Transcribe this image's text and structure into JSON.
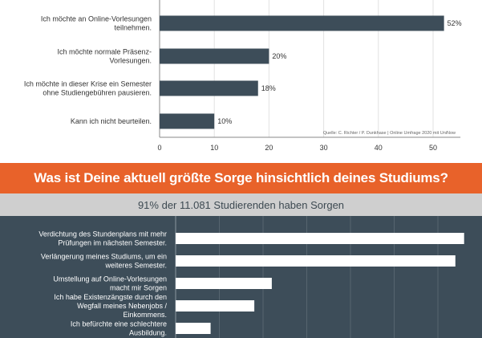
{
  "chart_data": [
    {
      "type": "bar",
      "orientation": "horizontal",
      "categories": [
        [
          "Ich möchte an Online-Vorlesungen",
          "teilnehmen."
        ],
        [
          "Ich möchte normale Präsenz-",
          "Vorlesungen."
        ],
        [
          "Ich möchte in dieser Krise ein Semester",
          "ohne Studiengebühren pausieren."
        ],
        [
          "Kann ich nicht beurteilen."
        ]
      ],
      "values": [
        52,
        20,
        18,
        10
      ],
      "value_labels": [
        "52%",
        "20%",
        "18%",
        "10%"
      ],
      "xlim": [
        0,
        55
      ],
      "ticks": [
        0,
        10,
        20,
        30,
        40,
        50
      ],
      "grid": true,
      "bar_color": "#3d4d59",
      "source": "Quelle: C. Richter / P. Dunkhase | Online Umfrage 2020 mit UniNow"
    },
    {
      "type": "bar",
      "orientation": "horizontal",
      "title": "Was ist Deine aktuell größte Sorge hinsichtlich deines Studiums?",
      "subtitle": "91% der 11.081 Studierenden haben Sorgen",
      "categories": [
        [
          "Verdichtung des Stundenplans mit mehr",
          "Prüfungen im nächsten Semester."
        ],
        [
          "Verlängerung meines Studiums, um ein",
          "weiteres Semester."
        ],
        [
          "Umstellung auf Online-Vorlesungen",
          "macht mir Sorgen"
        ],
        [
          "Ich habe Existenzängste durch den",
          "Wegfall meines Nebenjobs /",
          "Einkommens."
        ],
        [
          "Ich befürchte eine schlechtere",
          "Ausbildung."
        ]
      ],
      "values": [
        33,
        32,
        11,
        9,
        4
      ],
      "xlim": [
        0,
        34
      ],
      "grid": true,
      "bar_color": "#ffffff",
      "background": "#3d4d59",
      "title_background": "#e8622a",
      "subtitle_background": "#cfcfcf"
    }
  ]
}
